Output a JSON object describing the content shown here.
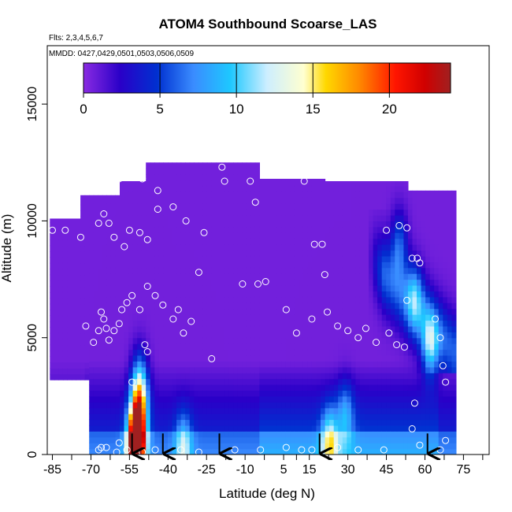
{
  "chart_data": {
    "type": "heatmap",
    "title": "ATOM4 Southbound Scoarse_LAS",
    "annotations": [
      "Flts: 2,3,4,5,6,7",
      "MMDD: 0427,0429,0501,0503,0506,0509"
    ],
    "xlabel": "Latitude (deg N)",
    "ylabel": "Altitude (m)",
    "xlim": [
      -87,
      85
    ],
    "ylim": [
      0,
      17500
    ],
    "x_ticks": [
      -85,
      -70,
      -55,
      -40,
      -25,
      -10,
      5,
      15,
      30,
      45,
      60,
      75
    ],
    "x_tick_labels": [
      "-85",
      "-70",
      "-55",
      "-40",
      "-25",
      "-10",
      "5",
      "15",
      "30",
      "45",
      "60",
      "75"
    ],
    "y_ticks": [
      0,
      5000,
      10000,
      15000
    ],
    "y_tick_labels": [
      "0",
      "5000",
      "10000",
      "15000"
    ],
    "colorbar": {
      "range": [
        0,
        24
      ],
      "ticks": [
        0,
        5,
        10,
        15,
        20
      ],
      "tick_labels": [
        "0",
        "5",
        "10",
        "15",
        "20"
      ]
    },
    "grid": false,
    "arrow_latitudes": [
      -54,
      -42,
      -20,
      19,
      61
    ],
    "hotspots": [
      {
        "lat": -52.5,
        "alt": 400,
        "value": 22
      },
      {
        "lat": -51.5,
        "alt": 1500,
        "value": 14
      },
      {
        "lat": -51,
        "alt": 3000,
        "value": 9
      },
      {
        "lat": -34,
        "alt": 400,
        "value": 6
      },
      {
        "lat": 23,
        "alt": 600,
        "value": 8
      },
      {
        "lat": 29,
        "alt": 1700,
        "value": 5
      },
      {
        "lat": 62,
        "alt": 4700,
        "value": 8
      },
      {
        "lat": 56,
        "alt": 6700,
        "value": 6
      },
      {
        "lat": 50,
        "alt": 9000,
        "value": 5
      }
    ],
    "sample_points": [
      [
        -85,
        9600
      ],
      [
        -80,
        9600
      ],
      [
        -74,
        9300
      ],
      [
        -72,
        5500
      ],
      [
        -69,
        4800
      ],
      [
        -67,
        5300
      ],
      [
        -66,
        6100
      ],
      [
        -65,
        5800
      ],
      [
        -64,
        5400
      ],
      [
        -63,
        4900
      ],
      [
        -61,
        5300
      ],
      [
        -59,
        5600
      ],
      [
        -58,
        6200
      ],
      [
        -56,
        6500
      ],
      [
        -54,
        6800
      ],
      [
        -51,
        6200
      ],
      [
        -48,
        7200
      ],
      [
        -45,
        6800
      ],
      [
        -42,
        6400
      ],
      [
        -38,
        5800
      ],
      [
        -36,
        6200
      ],
      [
        -34,
        5200
      ],
      [
        -31,
        5700
      ],
      [
        -28,
        7800
      ],
      [
        -67,
        9900
      ],
      [
        -65,
        10300
      ],
      [
        -63,
        9900
      ],
      [
        -61,
        9300
      ],
      [
        -57,
        8900
      ],
      [
        -55,
        9600
      ],
      [
        -51,
        9500
      ],
      [
        -48,
        9200
      ],
      [
        -44,
        10500
      ],
      [
        -38,
        10600
      ],
      [
        -33,
        10000
      ],
      [
        -26,
        9500
      ],
      [
        -61,
        11400
      ],
      [
        -59,
        11800
      ],
      [
        -50,
        11800
      ],
      [
        -44,
        11300
      ],
      [
        -19,
        12300
      ],
      [
        -18,
        11700
      ],
      [
        -8,
        11700
      ],
      [
        -6,
        10800
      ],
      [
        13,
        11700
      ],
      [
        17,
        9000
      ],
      [
        20,
        9000
      ],
      [
        21,
        7700
      ],
      [
        -11,
        7300
      ],
      [
        -5,
        7300
      ],
      [
        -2,
        7400
      ],
      [
        6,
        6200
      ],
      [
        10,
        5200
      ],
      [
        16,
        5800
      ],
      [
        22,
        6100
      ],
      [
        26,
        5500
      ],
      [
        30,
        5300
      ],
      [
        34,
        5000
      ],
      [
        37,
        5400
      ],
      [
        41,
        4800
      ],
      [
        45,
        9600
      ],
      [
        50,
        9800
      ],
      [
        53,
        9700
      ],
      [
        55,
        8400
      ],
      [
        57,
        8400
      ],
      [
        58,
        8200
      ],
      [
        53,
        6600
      ],
      [
        46,
        5200
      ],
      [
        49,
        4700
      ],
      [
        52,
        4600
      ],
      [
        64,
        5800
      ],
      [
        66,
        5000
      ],
      [
        67,
        3800
      ],
      [
        68,
        3100
      ],
      [
        56,
        2200
      ],
      [
        55,
        1100
      ],
      [
        -23,
        4100
      ],
      [
        -48,
        4400
      ],
      [
        -49,
        4700
      ],
      [
        -54,
        3100
      ],
      [
        -73,
        200
      ],
      [
        -67,
        200
      ],
      [
        -64,
        300
      ],
      [
        -60,
        100
      ],
      [
        -56,
        200
      ],
      [
        -50,
        100
      ],
      [
        -45,
        200
      ],
      [
        -35,
        200
      ],
      [
        -28,
        100
      ],
      [
        -14,
        200
      ],
      [
        -4,
        200
      ],
      [
        6,
        300
      ],
      [
        12,
        200
      ],
      [
        16,
        200
      ],
      [
        26,
        300
      ],
      [
        34,
        200
      ],
      [
        44,
        200
      ],
      [
        58,
        400
      ],
      [
        66,
        200
      ],
      [
        68,
        600
      ],
      [
        -66,
        300
      ],
      [
        -59,
        500
      ]
    ]
  }
}
